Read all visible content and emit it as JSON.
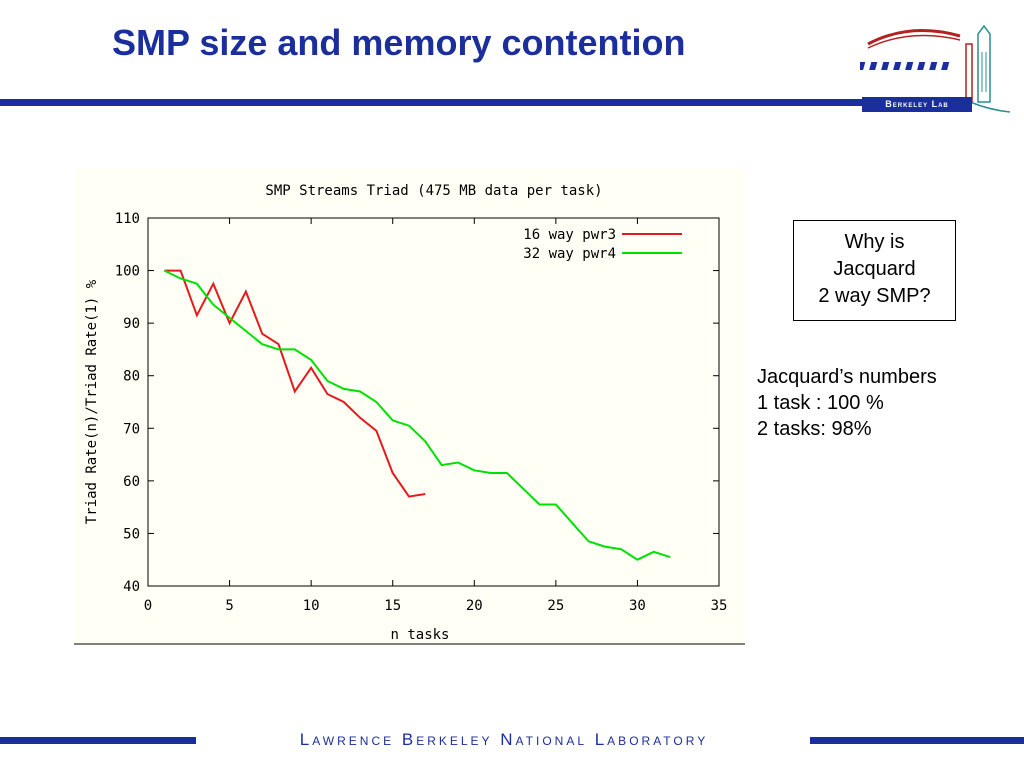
{
  "slide": {
    "title": "SMP size and memory contention",
    "logo_text": "Berkeley Lab",
    "footer": "Lawrence Berkeley National Laboratory"
  },
  "callout": {
    "lines": [
      "Why is",
      "Jacquard",
      "2 way SMP?"
    ]
  },
  "notes": {
    "lines": [
      "Jacquard’s numbers",
      "1 task : 100 %",
      "2 tasks: 98%"
    ]
  },
  "colors": {
    "brand": "#1a2f9b",
    "series_16way": "#e41a1c",
    "series_32way": "#00e000",
    "plot_background": "#fffff5"
  },
  "chart_data": {
    "type": "line",
    "title": "SMP Streams Triad (475 MB data per task)",
    "xlabel": "n tasks",
    "ylabel": "Triad Rate(n)/Triad Rate(1) %",
    "xlim": [
      0,
      35
    ],
    "ylim": [
      40,
      110
    ],
    "xticks": [
      0,
      5,
      10,
      15,
      20,
      25,
      30,
      35
    ],
    "yticks": [
      40,
      50,
      60,
      70,
      80,
      90,
      100,
      110
    ],
    "grid": false,
    "legend_position": "top-right",
    "series": [
      {
        "name": "16 way pwr3",
        "color": "#e41a1c",
        "x": [
          1,
          2,
          3,
          4,
          5,
          6,
          7,
          8,
          9,
          10,
          11,
          12,
          13,
          14,
          15,
          16,
          17
        ],
        "y": [
          100,
          100,
          91.5,
          97.5,
          90,
          96,
          88,
          86,
          77,
          81.5,
          76.5,
          75,
          72,
          69.5,
          61.5,
          57,
          57.5
        ]
      },
      {
        "name": "32 way pwr4",
        "color": "#00e000",
        "x": [
          1,
          2,
          3,
          4,
          5,
          6,
          7,
          8,
          9,
          10,
          11,
          12,
          13,
          14,
          15,
          16,
          17,
          18,
          19,
          20,
          21,
          22,
          23,
          24,
          25,
          26,
          27,
          28,
          29,
          30,
          31,
          32
        ],
        "y": [
          100,
          98.5,
          97.5,
          93.5,
          91,
          88.5,
          86,
          85,
          85,
          83,
          79,
          77.5,
          77,
          75,
          71.5,
          70.5,
          67.5,
          63,
          63.5,
          62,
          61.5,
          61.5,
          58.5,
          55.5,
          55.5,
          52,
          48.5,
          47.5,
          47,
          45,
          46.5,
          45.5
        ]
      }
    ]
  }
}
